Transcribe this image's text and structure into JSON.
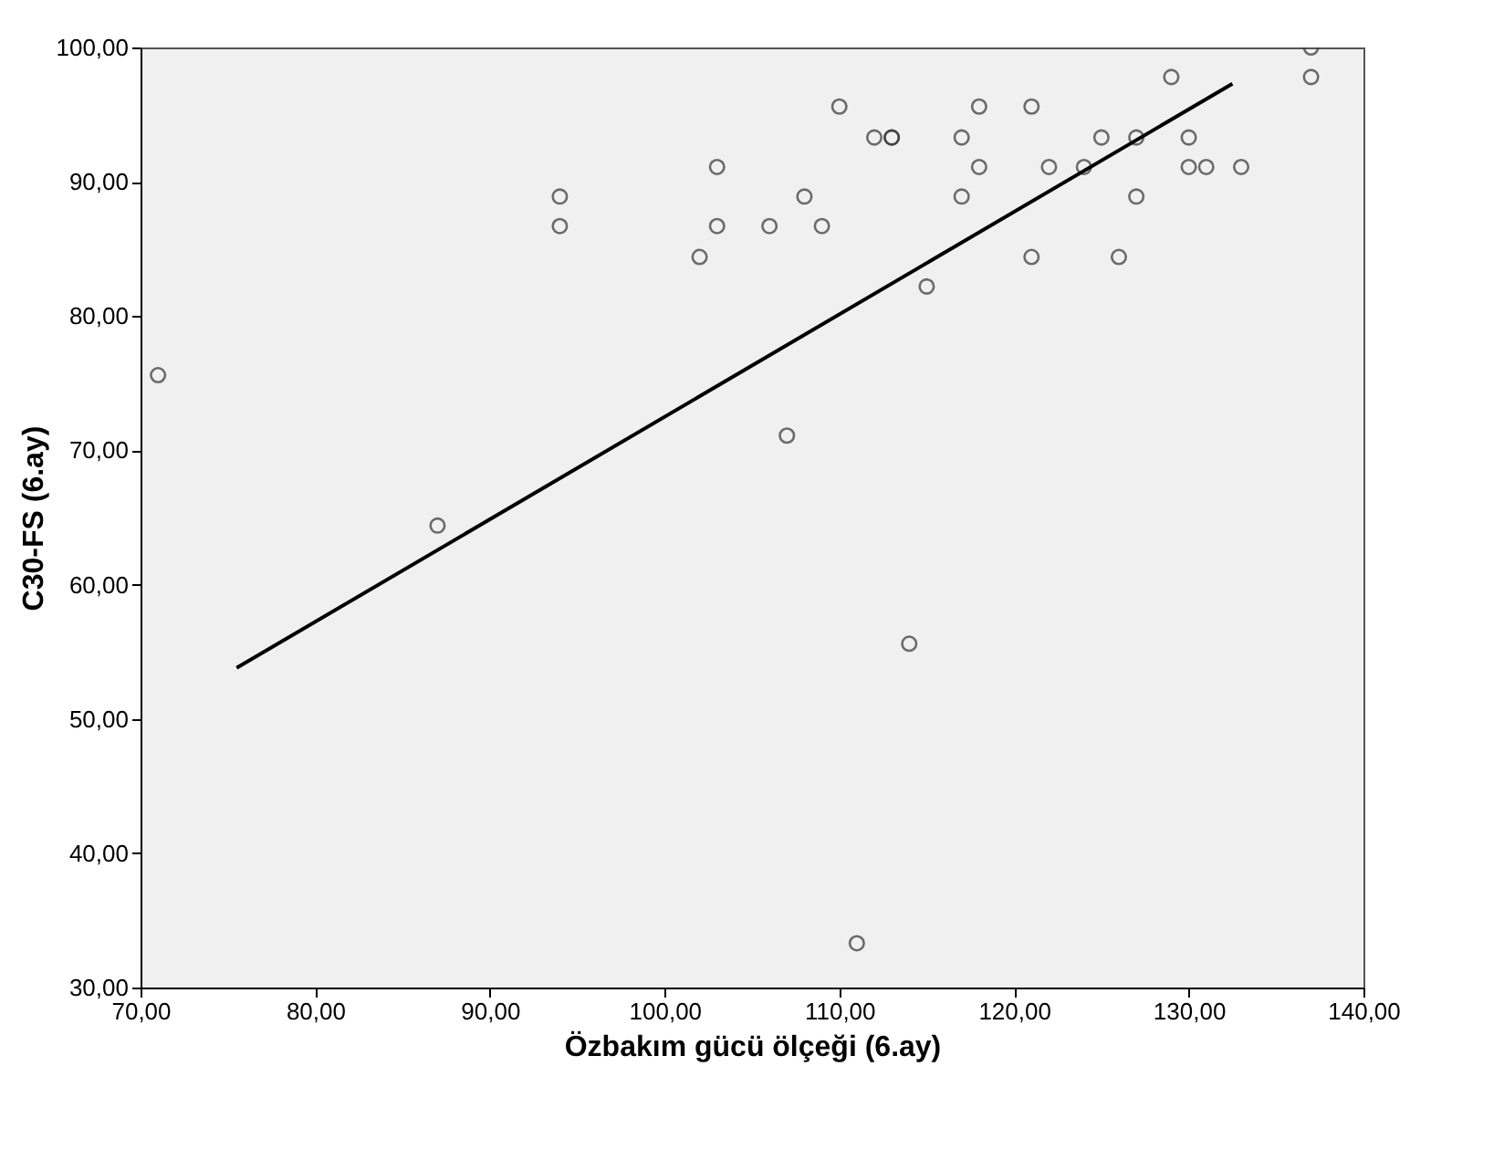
{
  "chart_data": {
    "type": "scatter",
    "xlabel": "Özbakım gücü ölçeği (6.ay)",
    "ylabel": "C30-FS (6.ay)",
    "xlim": [
      70,
      140
    ],
    "ylim": [
      30,
      100
    ],
    "xticks": [
      {
        "value": 70,
        "label": "70,00"
      },
      {
        "value": 80,
        "label": "80,00"
      },
      {
        "value": 90,
        "label": "90,00"
      },
      {
        "value": 100,
        "label": "100,00"
      },
      {
        "value": 110,
        "label": "110,00"
      },
      {
        "value": 120,
        "label": "120,00"
      },
      {
        "value": 130,
        "label": "130,00"
      },
      {
        "value": 140,
        "label": "140,00"
      }
    ],
    "yticks": [
      {
        "value": 30,
        "label": "30,00"
      },
      {
        "value": 40,
        "label": "40,00"
      },
      {
        "value": 50,
        "label": "50,00"
      },
      {
        "value": 60,
        "label": "60,00"
      },
      {
        "value": 70,
        "label": "70,00"
      },
      {
        "value": 80,
        "label": "80,00"
      },
      {
        "value": 90,
        "label": "90,00"
      },
      {
        "value": 100,
        "label": "100,00"
      }
    ],
    "grid": false,
    "marker": "circle",
    "series": [
      {
        "color": "#333333",
        "x": [
          71,
          87,
          94,
          94,
          102,
          103,
          103,
          106,
          107,
          108,
          109,
          110,
          111,
          112,
          113,
          113,
          114,
          115,
          117,
          117,
          118,
          118,
          121,
          121,
          122,
          124,
          125,
          126,
          127,
          127,
          129,
          130,
          130,
          131,
          133,
          137,
          137
        ],
        "values": [
          75.6,
          64.4,
          88.9,
          86.7,
          84.4,
          91.1,
          86.7,
          86.7,
          71.1,
          88.9,
          86.7,
          95.6,
          33.3,
          93.3,
          93.3,
          93.3,
          55.6,
          82.2,
          93.3,
          88.9,
          95.6,
          91.1,
          95.6,
          84.4,
          91.1,
          91.1,
          93.3,
          84.4,
          93.3,
          88.9,
          97.8,
          93.3,
          91.1,
          91.1,
          91.1,
          100,
          97.8
        ]
      },
      {
        "type": "line",
        "color": "#000000",
        "line_style": "solid",
        "marker": "none",
        "x": [
          75.5,
          132.5
        ],
        "values": [
          53.8,
          97.3
        ]
      }
    ]
  }
}
